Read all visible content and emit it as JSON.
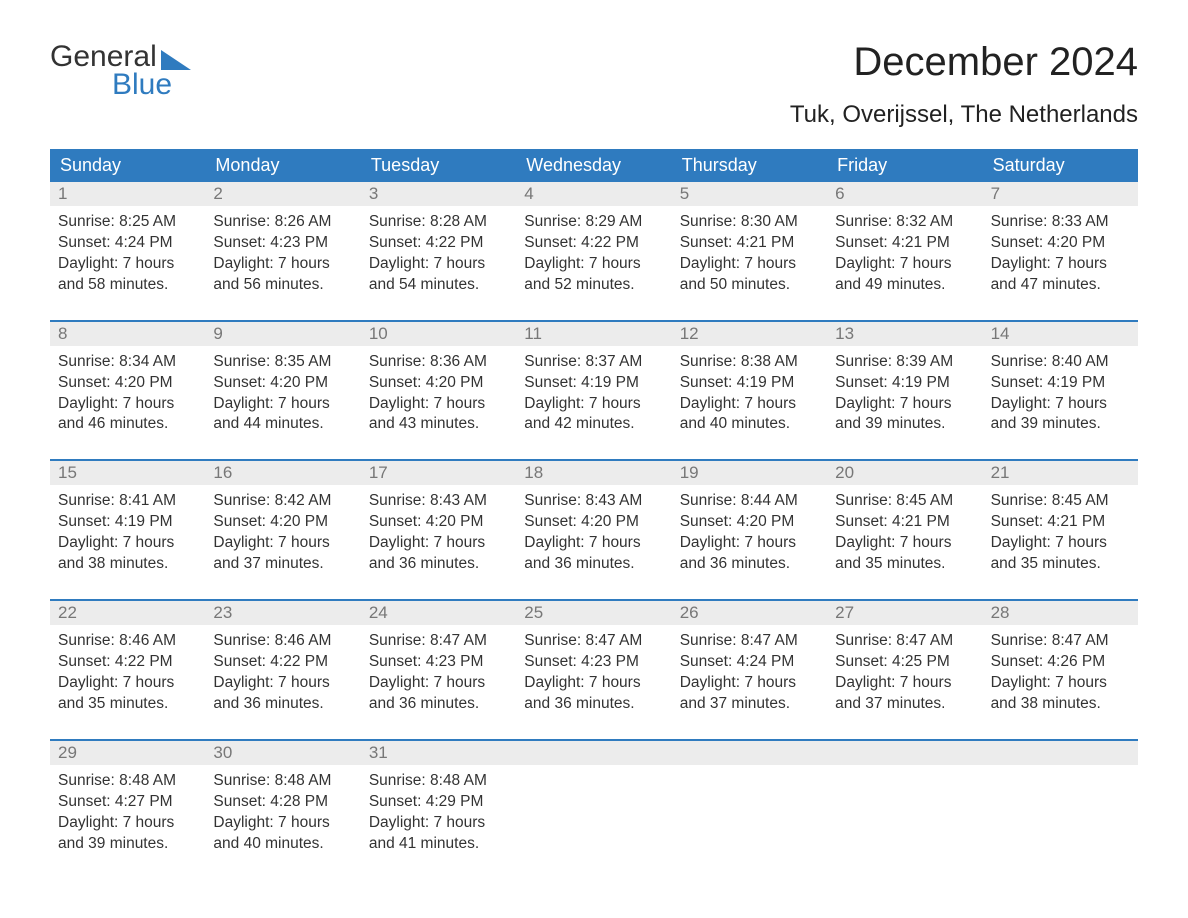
{
  "logo": {
    "line1": "General",
    "line2": "Blue"
  },
  "title": "December 2024",
  "location": "Tuk, Overijssel, The Netherlands",
  "colors": {
    "header_bg": "#2f7bbf",
    "header_text": "#ffffff",
    "daynum_bg": "#ececec",
    "daynum_text": "#777777",
    "body_text": "#333333",
    "page_bg": "#ffffff",
    "week_divider": "#2f7bbf"
  },
  "typography": {
    "title_fontsize": 40,
    "location_fontsize": 24,
    "dayname_fontsize": 18,
    "daynum_fontsize": 17,
    "cell_fontsize": 15.5
  },
  "daynames": [
    "Sunday",
    "Monday",
    "Tuesday",
    "Wednesday",
    "Thursday",
    "Friday",
    "Saturday"
  ],
  "weeks": [
    [
      {
        "n": "1",
        "sunrise": "Sunrise: 8:25 AM",
        "sunset": "Sunset: 4:24 PM",
        "d1": "Daylight: 7 hours",
        "d2": "and 58 minutes."
      },
      {
        "n": "2",
        "sunrise": "Sunrise: 8:26 AM",
        "sunset": "Sunset: 4:23 PM",
        "d1": "Daylight: 7 hours",
        "d2": "and 56 minutes."
      },
      {
        "n": "3",
        "sunrise": "Sunrise: 8:28 AM",
        "sunset": "Sunset: 4:22 PM",
        "d1": "Daylight: 7 hours",
        "d2": "and 54 minutes."
      },
      {
        "n": "4",
        "sunrise": "Sunrise: 8:29 AM",
        "sunset": "Sunset: 4:22 PM",
        "d1": "Daylight: 7 hours",
        "d2": "and 52 minutes."
      },
      {
        "n": "5",
        "sunrise": "Sunrise: 8:30 AM",
        "sunset": "Sunset: 4:21 PM",
        "d1": "Daylight: 7 hours",
        "d2": "and 50 minutes."
      },
      {
        "n": "6",
        "sunrise": "Sunrise: 8:32 AM",
        "sunset": "Sunset: 4:21 PM",
        "d1": "Daylight: 7 hours",
        "d2": "and 49 minutes."
      },
      {
        "n": "7",
        "sunrise": "Sunrise: 8:33 AM",
        "sunset": "Sunset: 4:20 PM",
        "d1": "Daylight: 7 hours",
        "d2": "and 47 minutes."
      }
    ],
    [
      {
        "n": "8",
        "sunrise": "Sunrise: 8:34 AM",
        "sunset": "Sunset: 4:20 PM",
        "d1": "Daylight: 7 hours",
        "d2": "and 46 minutes."
      },
      {
        "n": "9",
        "sunrise": "Sunrise: 8:35 AM",
        "sunset": "Sunset: 4:20 PM",
        "d1": "Daylight: 7 hours",
        "d2": "and 44 minutes."
      },
      {
        "n": "10",
        "sunrise": "Sunrise: 8:36 AM",
        "sunset": "Sunset: 4:20 PM",
        "d1": "Daylight: 7 hours",
        "d2": "and 43 minutes."
      },
      {
        "n": "11",
        "sunrise": "Sunrise: 8:37 AM",
        "sunset": "Sunset: 4:19 PM",
        "d1": "Daylight: 7 hours",
        "d2": "and 42 minutes."
      },
      {
        "n": "12",
        "sunrise": "Sunrise: 8:38 AM",
        "sunset": "Sunset: 4:19 PM",
        "d1": "Daylight: 7 hours",
        "d2": "and 40 minutes."
      },
      {
        "n": "13",
        "sunrise": "Sunrise: 8:39 AM",
        "sunset": "Sunset: 4:19 PM",
        "d1": "Daylight: 7 hours",
        "d2": "and 39 minutes."
      },
      {
        "n": "14",
        "sunrise": "Sunrise: 8:40 AM",
        "sunset": "Sunset: 4:19 PM",
        "d1": "Daylight: 7 hours",
        "d2": "and 39 minutes."
      }
    ],
    [
      {
        "n": "15",
        "sunrise": "Sunrise: 8:41 AM",
        "sunset": "Sunset: 4:19 PM",
        "d1": "Daylight: 7 hours",
        "d2": "and 38 minutes."
      },
      {
        "n": "16",
        "sunrise": "Sunrise: 8:42 AM",
        "sunset": "Sunset: 4:20 PM",
        "d1": "Daylight: 7 hours",
        "d2": "and 37 minutes."
      },
      {
        "n": "17",
        "sunrise": "Sunrise: 8:43 AM",
        "sunset": "Sunset: 4:20 PM",
        "d1": "Daylight: 7 hours",
        "d2": "and 36 minutes."
      },
      {
        "n": "18",
        "sunrise": "Sunrise: 8:43 AM",
        "sunset": "Sunset: 4:20 PM",
        "d1": "Daylight: 7 hours",
        "d2": "and 36 minutes."
      },
      {
        "n": "19",
        "sunrise": "Sunrise: 8:44 AM",
        "sunset": "Sunset: 4:20 PM",
        "d1": "Daylight: 7 hours",
        "d2": "and 36 minutes."
      },
      {
        "n": "20",
        "sunrise": "Sunrise: 8:45 AM",
        "sunset": "Sunset: 4:21 PM",
        "d1": "Daylight: 7 hours",
        "d2": "and 35 minutes."
      },
      {
        "n": "21",
        "sunrise": "Sunrise: 8:45 AM",
        "sunset": "Sunset: 4:21 PM",
        "d1": "Daylight: 7 hours",
        "d2": "and 35 minutes."
      }
    ],
    [
      {
        "n": "22",
        "sunrise": "Sunrise: 8:46 AM",
        "sunset": "Sunset: 4:22 PM",
        "d1": "Daylight: 7 hours",
        "d2": "and 35 minutes."
      },
      {
        "n": "23",
        "sunrise": "Sunrise: 8:46 AM",
        "sunset": "Sunset: 4:22 PM",
        "d1": "Daylight: 7 hours",
        "d2": "and 36 minutes."
      },
      {
        "n": "24",
        "sunrise": "Sunrise: 8:47 AM",
        "sunset": "Sunset: 4:23 PM",
        "d1": "Daylight: 7 hours",
        "d2": "and 36 minutes."
      },
      {
        "n": "25",
        "sunrise": "Sunrise: 8:47 AM",
        "sunset": "Sunset: 4:23 PM",
        "d1": "Daylight: 7 hours",
        "d2": "and 36 minutes."
      },
      {
        "n": "26",
        "sunrise": "Sunrise: 8:47 AM",
        "sunset": "Sunset: 4:24 PM",
        "d1": "Daylight: 7 hours",
        "d2": "and 37 minutes."
      },
      {
        "n": "27",
        "sunrise": "Sunrise: 8:47 AM",
        "sunset": "Sunset: 4:25 PM",
        "d1": "Daylight: 7 hours",
        "d2": "and 37 minutes."
      },
      {
        "n": "28",
        "sunrise": "Sunrise: 8:47 AM",
        "sunset": "Sunset: 4:26 PM",
        "d1": "Daylight: 7 hours",
        "d2": "and 38 minutes."
      }
    ],
    [
      {
        "n": "29",
        "sunrise": "Sunrise: 8:48 AM",
        "sunset": "Sunset: 4:27 PM",
        "d1": "Daylight: 7 hours",
        "d2": "and 39 minutes."
      },
      {
        "n": "30",
        "sunrise": "Sunrise: 8:48 AM",
        "sunset": "Sunset: 4:28 PM",
        "d1": "Daylight: 7 hours",
        "d2": "and 40 minutes."
      },
      {
        "n": "31",
        "sunrise": "Sunrise: 8:48 AM",
        "sunset": "Sunset: 4:29 PM",
        "d1": "Daylight: 7 hours",
        "d2": "and 41 minutes."
      },
      null,
      null,
      null,
      null
    ]
  ]
}
